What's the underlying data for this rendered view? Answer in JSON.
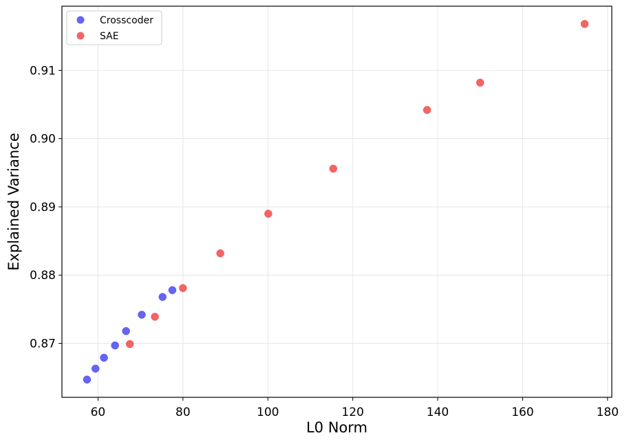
{
  "chart_data": {
    "type": "scatter",
    "xlabel": "L0 Norm",
    "ylabel": "Explained Variance",
    "xlim": [
      51.5,
      181
    ],
    "ylim": [
      0.8621,
      0.9194
    ],
    "xticks": [
      60,
      80,
      100,
      120,
      140,
      160,
      180
    ],
    "yticks": [
      0.87,
      0.88,
      0.89,
      0.9,
      0.91
    ],
    "xtick_labels": [
      "60",
      "80",
      "100",
      "120",
      "140",
      "160",
      "180"
    ],
    "ytick_labels": [
      "0.87",
      "0.88",
      "0.89",
      "0.90",
      "0.91"
    ],
    "grid": true,
    "legend": "top-left",
    "series": [
      {
        "name": "Crosscoder",
        "color": "#4a4af0",
        "points": [
          {
            "x": 57.4,
            "y": 0.8647
          },
          {
            "x": 59.4,
            "y": 0.8663
          },
          {
            "x": 61.4,
            "y": 0.8679
          },
          {
            "x": 64.0,
            "y": 0.8697
          },
          {
            "x": 66.6,
            "y": 0.8718
          },
          {
            "x": 70.3,
            "y": 0.8742
          },
          {
            "x": 75.2,
            "y": 0.8768
          },
          {
            "x": 77.5,
            "y": 0.8778
          }
        ]
      },
      {
        "name": "SAE",
        "color": "#f04a4a",
        "points": [
          {
            "x": 67.5,
            "y": 0.8699
          },
          {
            "x": 73.4,
            "y": 0.8739
          },
          {
            "x": 80.0,
            "y": 0.8781
          },
          {
            "x": 88.8,
            "y": 0.8832
          },
          {
            "x": 100.1,
            "y": 0.889
          },
          {
            "x": 115.4,
            "y": 0.8956
          },
          {
            "x": 137.5,
            "y": 0.9042
          },
          {
            "x": 150.0,
            "y": 0.9082
          },
          {
            "x": 174.6,
            "y": 0.9168
          }
        ]
      }
    ]
  }
}
